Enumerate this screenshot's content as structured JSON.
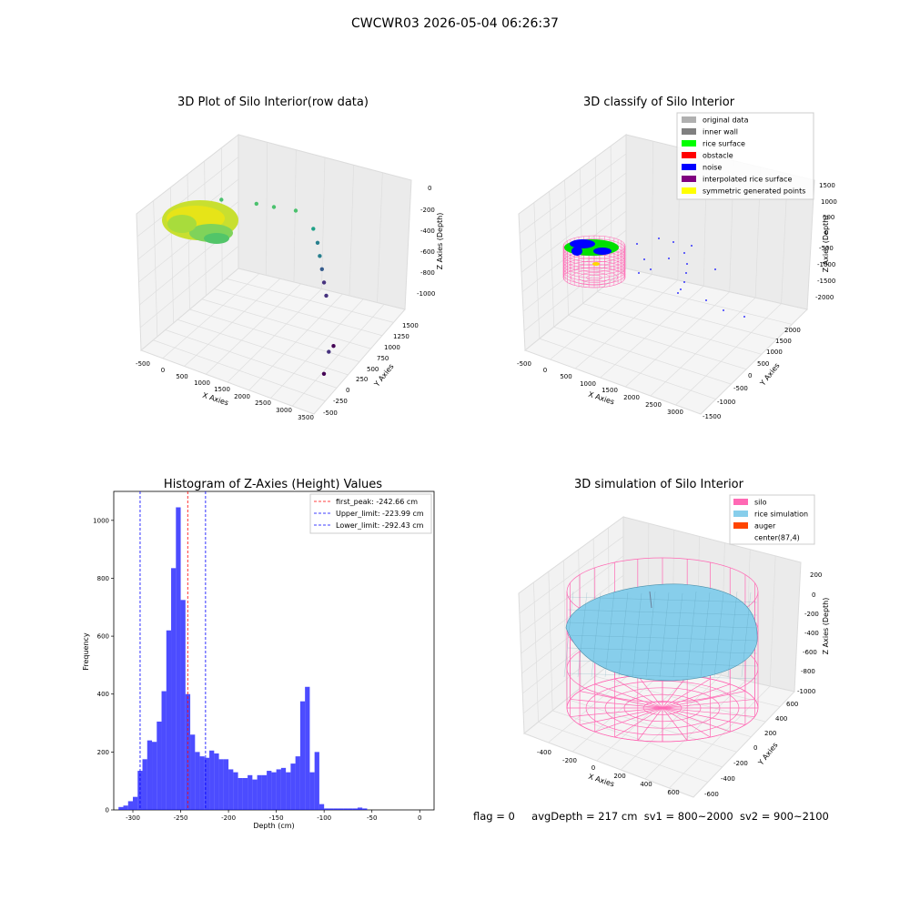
{
  "figure": {
    "suptitle": "CWCWR03 2026-05-04 06:26:37",
    "footer": {
      "flag": "flag = 0",
      "avg_depth": "avgDepth = 217 cm",
      "sv1": "sv1 = 800~2000",
      "sv2": "sv2 = 900~2100"
    }
  },
  "chart_data": [
    {
      "type": "scatter",
      "title": "3D Plot of Silo Interior(row data)",
      "xlabel": "X Axies",
      "ylabel": "Y Axies",
      "zlabel": "Z Axies (Depth)",
      "x_ticks": [
        "-500",
        "0",
        "500",
        "1000",
        "1500",
        "2000",
        "2500",
        "3000",
        "3500"
      ],
      "y_ticks": [
        "-500",
        "-250",
        "0",
        "250",
        "500",
        "750",
        "1000",
        "1250",
        "1500"
      ],
      "z_ticks": [
        "0",
        "-200",
        "-400",
        "-600",
        "-800",
        "-1000"
      ],
      "xlim": [
        -500,
        3500
      ],
      "ylim": [
        -500,
        1500
      ],
      "zlim": [
        -1100,
        0
      ],
      "colormap": "viridis",
      "points": [
        {
          "x": 200,
          "y": 600,
          "z": -260
        },
        {
          "x": 800,
          "y": 800,
          "z": -300
        },
        {
          "x": 1100,
          "y": 900,
          "z": -330
        },
        {
          "x": 1500,
          "y": 1000,
          "z": -350
        },
        {
          "x": 1800,
          "y": 1100,
          "z": -500
        },
        {
          "x": 1900,
          "y": 1100,
          "z": -600
        },
        {
          "x": 1950,
          "y": 1100,
          "z": -700
        },
        {
          "x": 2000,
          "y": 1100,
          "z": -800
        },
        {
          "x": 2050,
          "y": 1100,
          "z": -900
        },
        {
          "x": 2100,
          "y": 1100,
          "z": -1000
        },
        {
          "x": 2900,
          "y": 500,
          "z": -1050
        },
        {
          "x": 3000,
          "y": 300,
          "z": -1000
        },
        {
          "x": 3100,
          "y": 100,
          "z": -1080
        }
      ]
    },
    {
      "type": "scatter",
      "title": "3D classify of Silo Interior",
      "xlabel": "X Axies",
      "ylabel": "Y Axies",
      "zlabel": "Z Axies (Depth)",
      "x_ticks": [
        "-500",
        "0",
        "500",
        "1000",
        "1500",
        "2000",
        "2500",
        "3000"
      ],
      "y_ticks": [
        "-1500",
        "-1000",
        "-500",
        "0",
        "500",
        "1000",
        "1500",
        "2000"
      ],
      "z_ticks": [
        "1500",
        "1000",
        "500",
        "0",
        "-500",
        "-1000",
        "-1500",
        "-2000"
      ],
      "xlim": [
        -500,
        3200
      ],
      "ylim": [
        -1500,
        2200
      ],
      "zlim": [
        -2200,
        1500
      ],
      "legend": {
        "position": "upper-right",
        "entries": [
          {
            "label": "original data",
            "color": "#b0b0b0"
          },
          {
            "label": "inner wall",
            "color": "#808080"
          },
          {
            "label": "rice surface",
            "color": "#00ff00"
          },
          {
            "label": "obstacle",
            "color": "#ff0000"
          },
          {
            "label": "noise",
            "color": "#0000ff"
          },
          {
            "label": "interpolated rice surface",
            "color": "#800080"
          },
          {
            "label": "symmetric generated points",
            "color": "#ffff00"
          }
        ]
      }
    },
    {
      "type": "bar",
      "title": "Histogram of Z-Axies (Height) Values",
      "xlabel": "Depth (cm)",
      "ylabel": "Frequency",
      "xlim": [
        -320,
        15
      ],
      "ylim": [
        0,
        1100
      ],
      "x_ticks": [
        -300,
        -250,
        -200,
        -150,
        -100,
        -50,
        0
      ],
      "y_ticks": [
        0,
        200,
        400,
        600,
        800,
        1000
      ],
      "bar_color": "#0000ff",
      "bin_start": -315,
      "bin_width": 5,
      "values": [
        10,
        15,
        30,
        45,
        135,
        175,
        240,
        235,
        305,
        410,
        620,
        835,
        1045,
        725,
        400,
        260,
        200,
        185,
        180,
        205,
        195,
        175,
        175,
        140,
        130,
        110,
        110,
        120,
        105,
        120,
        120,
        135,
        130,
        140,
        145,
        130,
        160,
        185,
        375,
        425,
        130,
        200,
        20,
        5,
        5,
        5,
        5,
        5,
        5,
        5,
        8,
        5
      ],
      "vlines": [
        {
          "label": "first_peak: -242.66 cm",
          "x": -242.66,
          "color": "#ff0000"
        },
        {
          "label": "Upper_limit: -223.99 cm",
          "x": -223.99,
          "color": "#0000ff"
        },
        {
          "label": "Lower_limit: -292.43 cm",
          "x": -292.43,
          "color": "#0000ff"
        }
      ],
      "legend": {
        "position": "top-right"
      }
    },
    {
      "type": "scatter",
      "title": "3D simulation of Silo Interior",
      "xlabel": "X Axies",
      "ylabel": "Y Axies",
      "zlabel": "Z Axies (Depth)",
      "x_ticks": [
        "-400",
        "-200",
        "0",
        "200",
        "400",
        "600"
      ],
      "y_ticks": [
        "-600",
        "-400",
        "-200",
        "0",
        "200",
        "400",
        "600"
      ],
      "z_ticks": [
        "200",
        "0",
        "-200",
        "-400",
        "-600",
        "-800",
        "-1000"
      ],
      "xlim": [
        -500,
        700
      ],
      "ylim": [
        -700,
        700
      ],
      "zlim": [
        -1000,
        300
      ],
      "legend": {
        "position": "upper-right",
        "entries": [
          {
            "label": "silo",
            "color": "#ff69b4"
          },
          {
            "label": "rice simulation",
            "color": "#87ceeb"
          },
          {
            "label": "auger",
            "color": "#ff4500"
          },
          {
            "label": "center(87,4)",
            "color": "#ffffff"
          }
        ]
      }
    }
  ]
}
